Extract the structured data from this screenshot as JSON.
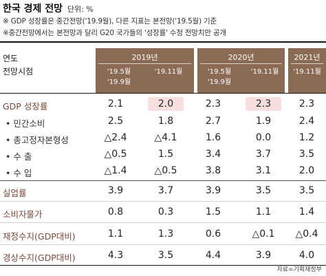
{
  "title": "한국 경제 전망",
  "unit": "단위: %",
  "notes": [
    "※ GDP 성장률은 중간전망('19.9월), 다른 지표는 본전망('19.5월) 기준",
    "※중간전망에서는 본전망과 달리 G20 국가들의 '성장률' 수정 전망치만 공개"
  ],
  "header": {
    "row_label_line1": "연도",
    "row_label_line2": "전망시점",
    "years": [
      "2019년",
      "2020년",
      "2021년"
    ],
    "phases": [
      "'19.5월\n'19.9월",
      "'19.11월",
      "'19.5월\n'19.9월",
      "'19.11월",
      "'19.11월"
    ]
  },
  "rows": [
    {
      "label": "GDP 성장률",
      "values": [
        "2.1",
        "2.0",
        "2.3",
        "2.3",
        "2.3"
      ]
    },
    {
      "label": "• 민간소비",
      "values": [
        "2.5",
        "1.8",
        "2.7",
        "1.9",
        "2.4"
      ]
    },
    {
      "label": "• 총고정자본형성",
      "values": [
        "△2.4",
        "△4.1",
        "1.6",
        "0.0",
        "1.2"
      ]
    },
    {
      "label": "• 수  출",
      "values": [
        "△0.5",
        "1.5",
        "3.4",
        "3.7",
        "3.5"
      ]
    },
    {
      "label": "• 수  입",
      "values": [
        "△1.4",
        "△0.5",
        "3.8",
        "3.1",
        "2.0"
      ]
    },
    {
      "label": "실업률",
      "values": [
        "3.9",
        "3.7",
        "3.9",
        "3.5",
        "3.5"
      ]
    },
    {
      "label": "소비자물가",
      "values": [
        "0.8",
        "0.3",
        "1.5",
        "1.1",
        "1.4"
      ]
    },
    {
      "label": "재정수지(GDP대비)",
      "values": [
        "1.1",
        "1.3",
        "0.6",
        "△0.1",
        "△0.4"
      ]
    },
    {
      "label": "경상수지(GDP대비)",
      "values": [
        "4.3",
        "3.5",
        "4.4",
        "3.9",
        "4.0"
      ]
    }
  ],
  "highlight_color": "#f7dfe0",
  "header_color": "#8c6b55",
  "source": "자료=기획재정부"
}
